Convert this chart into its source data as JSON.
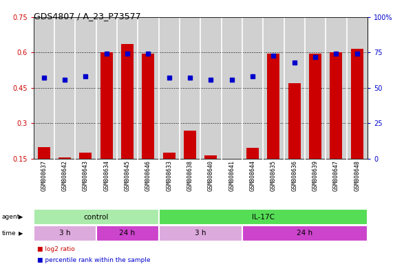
{
  "title": "GDS4807 / A_23_P73577",
  "samples": [
    "GSM808637",
    "GSM808642",
    "GSM808643",
    "GSM808634",
    "GSM808645",
    "GSM808646",
    "GSM808633",
    "GSM808638",
    "GSM808640",
    "GSM808641",
    "GSM808644",
    "GSM808635",
    "GSM808636",
    "GSM808639",
    "GSM808647",
    "GSM808648"
  ],
  "log2_ratio": [
    0.2,
    0.155,
    0.175,
    0.6,
    0.635,
    0.595,
    0.175,
    0.27,
    0.165,
    0.125,
    0.195,
    0.595,
    0.47,
    0.595,
    0.6,
    0.615
  ],
  "percentile_rank": [
    57,
    56,
    58,
    74,
    74,
    74,
    57,
    57,
    56,
    56,
    58,
    73,
    68,
    72,
    74,
    74
  ],
  "ylim_left": [
    0.15,
    0.75
  ],
  "ylim_right": [
    0,
    100
  ],
  "yticks_left": [
    0.15,
    0.3,
    0.45,
    0.6,
    0.75
  ],
  "yticks_right": [
    0,
    25,
    50,
    75,
    100
  ],
  "ytick_labels_left": [
    "0.15",
    "0.3",
    "0.45",
    "0.6",
    "0.75"
  ],
  "ytick_labels_right": [
    "0",
    "25",
    "50",
    "75",
    "100%"
  ],
  "bar_color": "#cc0000",
  "dot_color": "#0000cc",
  "sample_bg_color": "#d0d0d0",
  "plot_bg": "#ffffff",
  "agent_groups": [
    {
      "label": "control",
      "start": 0,
      "end": 6,
      "color": "#aaeaaa"
    },
    {
      "label": "IL-17C",
      "start": 6,
      "end": 16,
      "color": "#55dd55"
    }
  ],
  "time_groups": [
    {
      "label": "3 h",
      "start": 0,
      "end": 3,
      "color": "#ddaadd"
    },
    {
      "label": "24 h",
      "start": 3,
      "end": 6,
      "color": "#cc44cc"
    },
    {
      "label": "3 h",
      "start": 6,
      "end": 10,
      "color": "#ddaadd"
    },
    {
      "label": "24 h",
      "start": 10,
      "end": 16,
      "color": "#cc44cc"
    }
  ],
  "legend_items": [
    {
      "label": "log2 ratio",
      "color": "#cc0000",
      "marker": "s"
    },
    {
      "label": "percentile rank within the sample",
      "color": "#0000cc",
      "marker": "s"
    }
  ],
  "bar_width": 0.6
}
